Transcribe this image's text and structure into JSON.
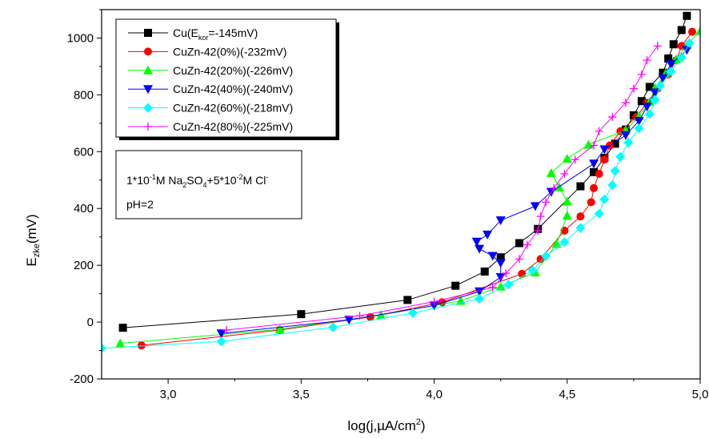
{
  "chart_data": {
    "type": "scatter",
    "xlabel": "log(j,µA/cm²)",
    "ylabel": "Ezke(mV)",
    "xlim": [
      2.75,
      5.0
    ],
    "ylim": [
      -200,
      1100
    ],
    "x_ticks": [
      "3,0",
      "3,5",
      "4,0",
      "4,5",
      "5,0"
    ],
    "y_ticks": [
      "-200",
      "0",
      "200",
      "400",
      "600",
      "800",
      "1000"
    ],
    "legend_position": "top-left",
    "series": [
      {
        "name": "Cu(Ekor=-145mV)",
        "color": "#000000",
        "marker": "square",
        "points": [
          [
            2.83,
            -20
          ],
          [
            3.5,
            28
          ],
          [
            3.9,
            78
          ],
          [
            4.08,
            128
          ],
          [
            4.19,
            178
          ],
          [
            4.25,
            228
          ],
          [
            4.32,
            278
          ],
          [
            4.39,
            328
          ],
          [
            4.55,
            478
          ],
          [
            4.6,
            528
          ],
          [
            4.64,
            578
          ],
          [
            4.68,
            628
          ],
          [
            4.72,
            678
          ],
          [
            4.75,
            728
          ],
          [
            4.78,
            778
          ],
          [
            4.81,
            828
          ],
          [
            4.86,
            878
          ],
          [
            4.88,
            928
          ],
          [
            4.9,
            978
          ],
          [
            4.93,
            1028
          ],
          [
            4.95,
            1078
          ]
        ]
      },
      {
        "name": "CuZn-42(0%)(-232mV)",
        "color": "#ff0000",
        "marker": "circle",
        "points": [
          [
            2.9,
            -82
          ],
          [
            3.42,
            -28
          ],
          [
            3.76,
            18
          ],
          [
            4.03,
            70
          ],
          [
            4.33,
            170
          ],
          [
            4.4,
            222
          ],
          [
            4.49,
            322
          ],
          [
            4.55,
            372
          ],
          [
            4.59,
            422
          ],
          [
            4.6,
            472
          ],
          [
            4.62,
            522
          ],
          [
            4.64,
            572
          ],
          [
            4.66,
            622
          ],
          [
            4.7,
            672
          ],
          [
            4.76,
            722
          ],
          [
            4.8,
            772
          ],
          [
            4.84,
            822
          ],
          [
            4.88,
            872
          ],
          [
            4.91,
            922
          ],
          [
            4.93,
            972
          ],
          [
            4.97,
            1022
          ]
        ]
      },
      {
        "name": "CuZn-42(20%)(-226mV)",
        "color": "#00ff00",
        "marker": "triangle-up",
        "points": [
          [
            2.82,
            -75
          ],
          [
            3.42,
            -25
          ],
          [
            3.8,
            25
          ],
          [
            4.1,
            75
          ],
          [
            4.25,
            125
          ],
          [
            4.38,
            175
          ],
          [
            4.46,
            275
          ],
          [
            4.5,
            375
          ],
          [
            4.5,
            425
          ],
          [
            4.47,
            475
          ],
          [
            4.44,
            525
          ],
          [
            4.5,
            575
          ],
          [
            4.58,
            625
          ],
          [
            4.72,
            675
          ],
          [
            4.77,
            725
          ],
          [
            4.81,
            775
          ],
          [
            4.83,
            825
          ],
          [
            4.87,
            875
          ],
          [
            4.91,
            925
          ],
          [
            4.95,
            975
          ],
          [
            5.0,
            1025
          ]
        ]
      },
      {
        "name": "CuZn-42(40%)(-240mV)",
        "color": "#0000ff",
        "marker": "triangle-down",
        "points": [
          [
            3.2,
            -40
          ],
          [
            3.68,
            8
          ],
          [
            4.0,
            58
          ],
          [
            4.17,
            108
          ],
          [
            4.25,
            158
          ],
          [
            4.25,
            208
          ],
          [
            4.22,
            233
          ],
          [
            4.17,
            258
          ],
          [
            4.16,
            283
          ],
          [
            4.2,
            308
          ],
          [
            4.25,
            358
          ],
          [
            4.38,
            408
          ],
          [
            4.44,
            458
          ],
          [
            4.6,
            558
          ],
          [
            4.64,
            608
          ],
          [
            4.72,
            658
          ],
          [
            4.77,
            708
          ],
          [
            4.8,
            758
          ],
          [
            4.83,
            808
          ],
          [
            4.86,
            858
          ],
          [
            4.89,
            908
          ],
          [
            4.95,
            958
          ]
        ]
      },
      {
        "name": "CuZn-42(60%)(-218mV)",
        "color": "#00ffff",
        "marker": "diamond",
        "points": [
          [
            2.75,
            -92
          ],
          [
            3.2,
            -68
          ],
          [
            3.62,
            -18
          ],
          [
            3.92,
            32
          ],
          [
            4.17,
            82
          ],
          [
            4.28,
            132
          ],
          [
            4.37,
            182
          ],
          [
            4.42,
            232
          ],
          [
            4.49,
            282
          ],
          [
            4.55,
            332
          ],
          [
            4.62,
            382
          ],
          [
            4.64,
            432
          ],
          [
            4.67,
            482
          ],
          [
            4.68,
            532
          ],
          [
            4.7,
            582
          ],
          [
            4.73,
            632
          ],
          [
            4.77,
            682
          ],
          [
            4.81,
            732
          ],
          [
            4.83,
            782
          ],
          [
            4.85,
            832
          ],
          [
            4.89,
            882
          ],
          [
            4.93,
            932
          ],
          [
            4.96,
            982
          ]
        ]
      },
      {
        "name": "CuZn-42(80%)(-225mV)",
        "color": "#ff00ff",
        "marker": "plus",
        "points": [
          [
            3.22,
            -28
          ],
          [
            3.72,
            22
          ],
          [
            4.0,
            72
          ],
          [
            4.22,
            122
          ],
          [
            4.27,
            172
          ],
          [
            4.32,
            222
          ],
          [
            4.35,
            272
          ],
          [
            4.39,
            322
          ],
          [
            4.4,
            372
          ],
          [
            4.42,
            422
          ],
          [
            4.45,
            472
          ],
          [
            4.49,
            522
          ],
          [
            4.53,
            572
          ],
          [
            4.6,
            622
          ],
          [
            4.62,
            672
          ],
          [
            4.67,
            722
          ],
          [
            4.72,
            772
          ],
          [
            4.75,
            822
          ],
          [
            4.78,
            872
          ],
          [
            4.8,
            922
          ],
          [
            4.84,
            972
          ]
        ]
      }
    ]
  },
  "legend": {
    "items": [
      {
        "main": "Cu(E",
        "sub": "kor",
        "tail": "=-145mV)"
      },
      {
        "main": "CuZn-42(0%)(-232mV)",
        "sub": "",
        "tail": ""
      },
      {
        "main": "CuZn-42(20%)(-226mV)",
        "sub": "",
        "tail": ""
      },
      {
        "main": "CuZn-42(40%)(-240mV)",
        "sub": "",
        "tail": ""
      },
      {
        "main": "CuZn-42(60%)(-218mV)",
        "sub": "",
        "tail": ""
      },
      {
        "main": "CuZn-42(80%)(-225mV)",
        "sub": "",
        "tail": ""
      }
    ]
  },
  "annotation": {
    "line1": [
      "1*10",
      "-1",
      "M Na",
      "2",
      "SO",
      "4",
      "+5*10",
      "-2",
      "M Cl",
      "-"
    ],
    "line2": "pH=2"
  },
  "axis_titles": {
    "y_main": "E",
    "y_sub": "zke",
    "y_tail": "(mV)",
    "x_main": "log(j,µA/cm",
    "x_sup": "2",
    "x_tail": ")"
  }
}
